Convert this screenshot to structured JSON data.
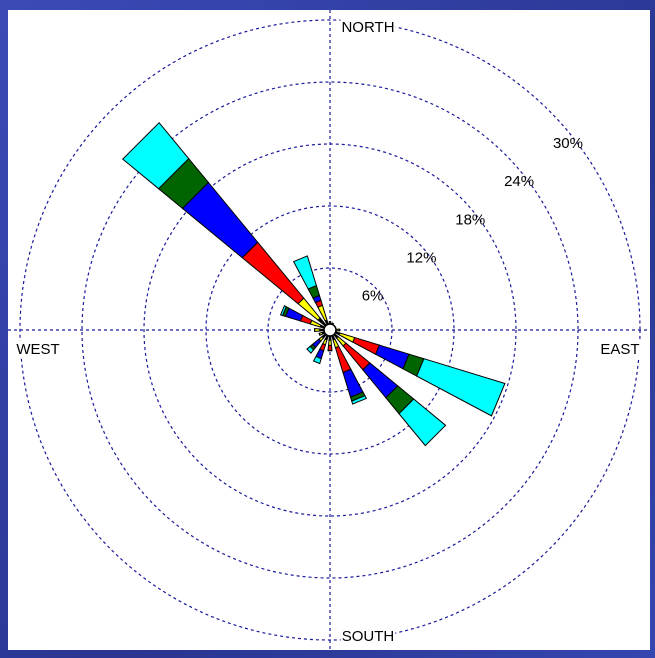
{
  "chart_data": {
    "type": "windrose",
    "compass": {
      "north": "NORTH",
      "east": "EAST",
      "south": "SOUTH",
      "west": "WEST"
    },
    "rlim": [
      0,
      30
    ],
    "rticks": [
      {
        "value": 6,
        "label": "6%"
      },
      {
        "value": 12,
        "label": "12%"
      },
      {
        "value": 18,
        "label": "18%"
      },
      {
        "value": 24,
        "label": "24%"
      },
      {
        "value": 30,
        "label": "30%"
      }
    ],
    "grid": true,
    "series": [
      {
        "color": "#000000",
        "values": [
          0.5,
          0.5,
          0.4,
          0.5,
          0.6,
          1,
          1,
          1,
          1,
          1,
          1,
          0.8,
          1,
          1,
          1.5,
          1
        ]
      },
      {
        "color": "#ffff00",
        "values": [
          0.3,
          0.2,
          0,
          0,
          0.3,
          1.5,
          1,
          0.8,
          0.5,
          0.5,
          0.4,
          0.3,
          0.5,
          1,
          2.5,
          1.5
        ]
      },
      {
        "color": "#ff0000",
        "values": [
          0,
          0,
          0,
          0,
          0,
          2.5,
          3,
          2.5,
          0.5,
          0.6,
          0,
          0,
          0,
          1,
          7,
          0.5
        ]
      },
      {
        "color": "#0000ff",
        "values": [
          0,
          0,
          0,
          0,
          0,
          3,
          3.5,
          2.5,
          0,
          0.8,
          0.8,
          0,
          0,
          1.5,
          7.5,
          0.5
        ]
      },
      {
        "color": "#006400",
        "values": [
          0,
          0,
          0,
          0,
          0,
          1.5,
          2,
          0.4,
          0,
          0,
          0.3,
          0,
          0,
          0.3,
          3,
          1
        ]
      },
      {
        "color": "#00ffff",
        "values": [
          0,
          0,
          0,
          0,
          0,
          8.2,
          4,
          0.3,
          0,
          0.5,
          0.4,
          0,
          0,
          0.2,
          4.5,
          3
        ]
      }
    ]
  }
}
